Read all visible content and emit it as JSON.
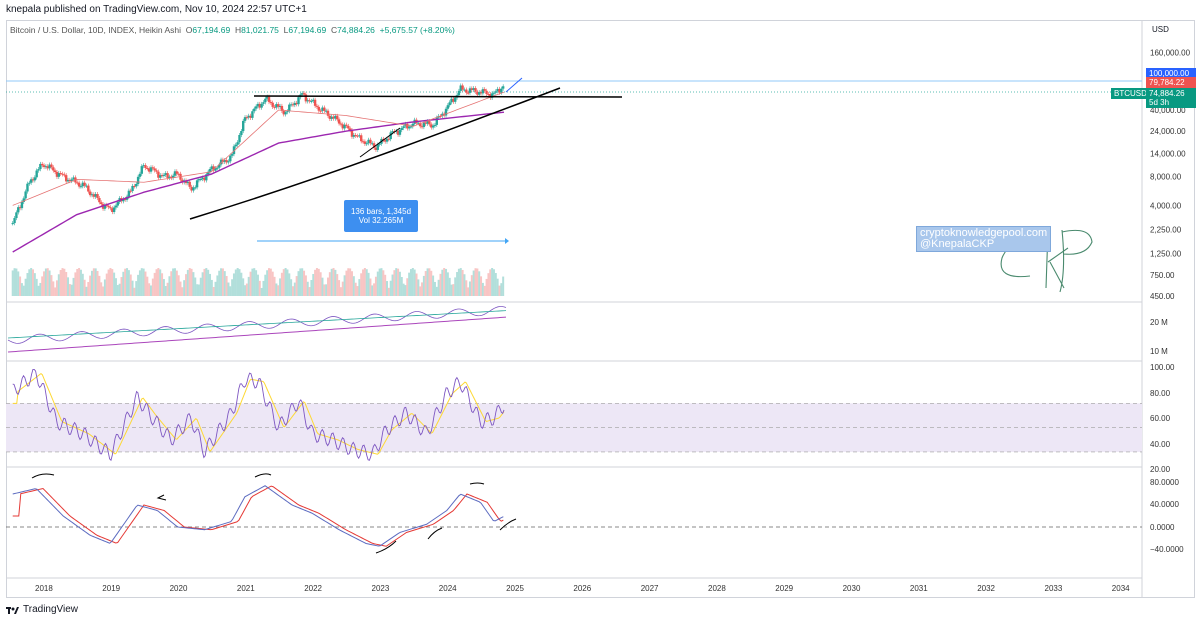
{
  "header": {
    "publisher_line": "knepala published on TradingView.com, Nov 10, 2024 22:57 UTC+1"
  },
  "legend": {
    "symbol": "Bitcoin / U.S. Dollar, 10D, INDEX, Heikin Ashi",
    "open_label": "O",
    "open": "67,194.69",
    "high_label": "H",
    "high": "81,021.75",
    "low_label": "L",
    "low": "67,194.69",
    "close_label": "C",
    "close": "74,884.26",
    "change": "+5,675.57 (+8.20%)"
  },
  "currency": "USD",
  "price_badges": {
    "top": "100,000.00",
    "red": "79,784.22",
    "symbol": "BTCUSD",
    "last": "74,884.26",
    "countdown": "5d 3h"
  },
  "measure_tool": {
    "bars": "136 bars, 1,345d",
    "vol": "Vol 32.265M"
  },
  "watermark": {
    "line1": "cryptoknowledgepool.com",
    "line2": "@KnepalaCKP",
    "signature": "CKP"
  },
  "footer": {
    "brand": "TradingView"
  },
  "colors": {
    "up": "#26a69a",
    "down": "#ef5350",
    "ma_slow": "#9c27b0",
    "ma_fast": "#e57373",
    "rsi": "#7e57c2",
    "rsi_signal": "#fdd835",
    "band": "#ede7f6"
  },
  "chart_data": {
    "type": "candlestick",
    "title": "Bitcoin / U.S. Dollar, 10D, INDEX, Heikin Ashi",
    "scale": "log",
    "x_ticks": [
      "2018",
      "2019",
      "2020",
      "2021",
      "2022",
      "2023",
      "2024",
      "2025",
      "2026",
      "2027",
      "2028",
      "2029",
      "2030",
      "2031",
      "2032",
      "2033",
      "2034"
    ],
    "price_ticks": [
      "160,000.00",
      "100,000.00",
      "40,000.00",
      "24,000.00",
      "14,000.00",
      "8,000.00",
      "4,000.00",
      "2,250.00",
      "1,250.00",
      "750.00",
      "450.00"
    ],
    "price_ticks_values": [
      160000,
      100000,
      40000,
      24000,
      14000,
      8000,
      4000,
      2250,
      1250,
      750,
      450
    ],
    "price_series_x": [
      2017.55,
      2017.8,
      2018.0,
      2018.3,
      2018.6,
      2018.9,
      2019.0,
      2019.3,
      2019.5,
      2019.8,
      2020.0,
      2020.2,
      2020.5,
      2020.8,
      2021.0,
      2021.3,
      2021.6,
      2021.85,
      2022.1,
      2022.4,
      2022.7,
      2022.95,
      2023.2,
      2023.5,
      2023.8,
      2024.0,
      2024.2,
      2024.5,
      2024.7,
      2024.86
    ],
    "price_series_close": [
      2600,
      7000,
      11000,
      8000,
      6500,
      4000,
      3600,
      5500,
      10500,
      8000,
      8500,
      6000,
      9500,
      13000,
      32000,
      52000,
      38000,
      58000,
      42000,
      30000,
      20000,
      16500,
      23000,
      29000,
      28000,
      42000,
      66000,
      62000,
      58000,
      74884
    ],
    "ma_slow": {
      "x": [
        2017.55,
        2018.5,
        2019.5,
        2020.5,
        2021.5,
        2022.5,
        2023.5,
        2024.86
      ],
      "y": [
        1300,
        3200,
        5500,
        8500,
        18000,
        24000,
        30000,
        38000
      ]
    },
    "ma_fast": {
      "x": [
        2017.55,
        2018.5,
        2019.5,
        2020.5,
        2021.5,
        2022.5,
        2023.5,
        2024.86
      ],
      "y": [
        4000,
        7500,
        7000,
        9000,
        40000,
        35000,
        27000,
        62000
      ]
    },
    "volume_pane": {
      "ticks": [
        "20 M",
        "10 M"
      ]
    },
    "rsi_pane": {
      "ticks": [
        "100.00",
        "80.00",
        "60.00",
        "40.00",
        "20.00"
      ],
      "band": [
        30,
        70
      ],
      "x": [
        2017.55,
        2017.9,
        2018.2,
        2018.6,
        2019.0,
        2019.4,
        2019.6,
        2019.9,
        2020.2,
        2020.4,
        2020.8,
        2021.0,
        2021.2,
        2021.5,
        2021.8,
        2022.0,
        2022.3,
        2022.6,
        2022.9,
        2023.1,
        2023.4,
        2023.7,
        2024.0,
        2024.2,
        2024.5,
        2024.7,
        2024.86
      ],
      "y": [
        80,
        95,
        55,
        45,
        28,
        75,
        60,
        40,
        58,
        30,
        62,
        90,
        88,
        50,
        72,
        45,
        40,
        32,
        28,
        48,
        62,
        45,
        78,
        88,
        55,
        58,
        70
      ]
    },
    "macd_pane": {
      "ticks": [
        "80.0000",
        "40.0000",
        "0.0000",
        "−40.0000"
      ],
      "x": [
        2017.55,
        2017.9,
        2018.3,
        2018.7,
        2019.0,
        2019.4,
        2019.7,
        2020.0,
        2020.4,
        2020.8,
        2021.0,
        2021.3,
        2021.7,
        2022.0,
        2022.4,
        2022.8,
        2023.0,
        2023.3,
        2023.7,
        2024.0,
        2024.2,
        2024.5,
        2024.7,
        2024.86
      ],
      "y": [
        60,
        70,
        20,
        -15,
        -30,
        40,
        30,
        0,
        -5,
        10,
        55,
        75,
        40,
        25,
        -5,
        -30,
        -35,
        -10,
        5,
        30,
        60,
        45,
        10,
        20
      ]
    }
  }
}
